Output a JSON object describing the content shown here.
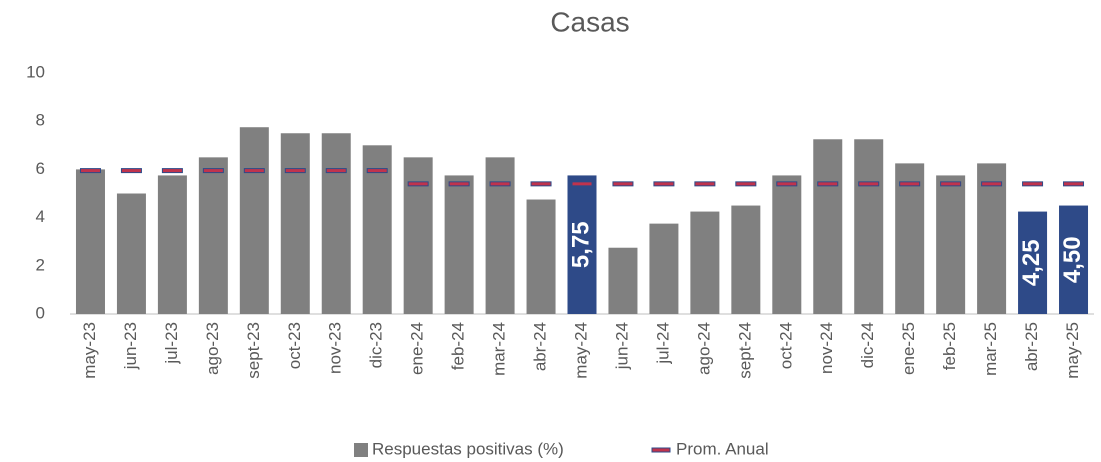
{
  "chart_data": {
    "type": "bar",
    "title": "Casas",
    "categories": [
      "may-23",
      "jun-23",
      "jul-23",
      "ago-23",
      "sept-23",
      "oct-23",
      "nov-23",
      "dic-23",
      "ene-24",
      "feb-24",
      "mar-24",
      "abr-24",
      "may-24",
      "jun-24",
      "jul-24",
      "ago-24",
      "sept-24",
      "oct-24",
      "nov-24",
      "dic-24",
      "ene-25",
      "feb-25",
      "mar-25",
      "abr-25",
      "may-25"
    ],
    "series": [
      {
        "name": "Respuestas positivas (%)",
        "color": "#808080",
        "colors": [
          "#808080",
          "#808080",
          "#808080",
          "#808080",
          "#808080",
          "#808080",
          "#808080",
          "#808080",
          "#808080",
          "#808080",
          "#808080",
          "#808080",
          "#2e4a88",
          "#808080",
          "#808080",
          "#808080",
          "#808080",
          "#808080",
          "#808080",
          "#808080",
          "#808080",
          "#808080",
          "#808080",
          "#2e4a88",
          "#2e4a88"
        ],
        "values": [
          6.0,
          5.0,
          5.75,
          6.5,
          7.75,
          7.5,
          7.5,
          7.0,
          6.5,
          5.75,
          6.5,
          4.75,
          5.75,
          2.75,
          3.75,
          4.25,
          4.5,
          5.75,
          7.25,
          7.25,
          6.25,
          5.75,
          6.25,
          4.25,
          4.5
        ],
        "value_labels": [
          null,
          null,
          null,
          null,
          null,
          null,
          null,
          null,
          null,
          null,
          null,
          null,
          "5,75",
          null,
          null,
          null,
          null,
          null,
          null,
          null,
          null,
          null,
          null,
          "4,25",
          "4,50"
        ]
      },
      {
        "name": "Prom. Anual",
        "type": "marker",
        "color": "#c0334d",
        "edge_color": "#2e4a88",
        "values": [
          5.95,
          5.95,
          5.95,
          5.95,
          5.95,
          5.95,
          5.95,
          5.95,
          5.4,
          5.4,
          5.4,
          5.4,
          5.4,
          5.4,
          5.4,
          5.4,
          5.4,
          5.4,
          5.4,
          5.4,
          5.4,
          5.4,
          5.4,
          5.4,
          5.4
        ]
      }
    ],
    "ylim": [
      0,
      10
    ],
    "yticks": [
      0,
      2,
      4,
      6,
      8,
      10
    ],
    "grid": false,
    "legend": "bottom"
  }
}
